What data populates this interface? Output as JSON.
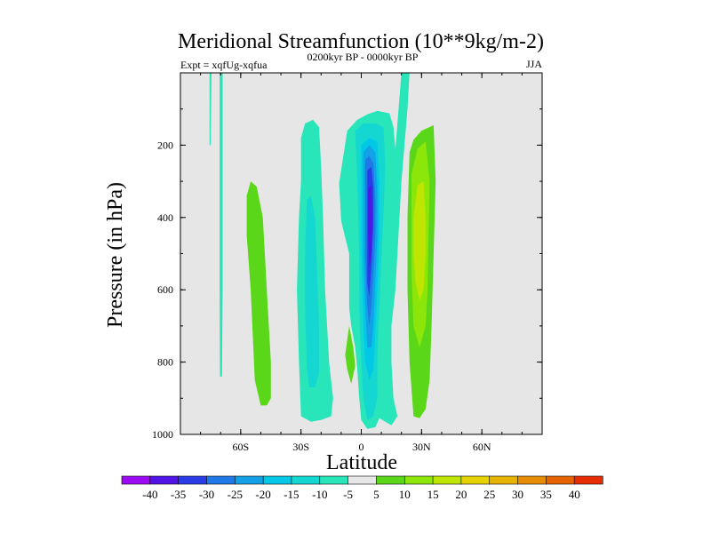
{
  "chart_data": {
    "type": "heatmap",
    "title": "Meridional Streamfunction (10**9kg/m-2)",
    "experiment_label": "Expt = xqfUg-xqfua",
    "period_label": "0200kyr BP - 0000kyr BP",
    "season_label": "JJA",
    "xlabel": "Latitude",
    "ylabel": "Pressure (in hPa)",
    "xlim": [
      -90,
      90
    ],
    "ylim": [
      1000,
      0
    ],
    "x_ticks": [
      {
        "value": -60,
        "label": "60S"
      },
      {
        "value": -30,
        "label": "30S"
      },
      {
        "value": 0,
        "label": "0"
      },
      {
        "value": 30,
        "label": "30N"
      },
      {
        "value": 60,
        "label": "60N"
      }
    ],
    "y_ticks": [
      {
        "value": 200,
        "label": "200"
      },
      {
        "value": 400,
        "label": "400"
      },
      {
        "value": 600,
        "label": "600"
      },
      {
        "value": 800,
        "label": "800"
      },
      {
        "value": 1000,
        "label": "1000"
      }
    ],
    "background_color": "#e6e6e6",
    "colorbar": {
      "levels": [
        "-40",
        "-35",
        "-30",
        "-25",
        "-20",
        "-15",
        "-10",
        "-5",
        "5",
        "10",
        "15",
        "20",
        "25",
        "30",
        "35",
        "40"
      ],
      "colors": [
        "#9b0af0",
        "#5014e6",
        "#2a3ce6",
        "#1e78e6",
        "#14a0e6",
        "#00c8e6",
        "#14d7d2",
        "#28e6b9",
        "#e6e6e6",
        "#5ad718",
        "#8ce60a",
        "#bee600",
        "#e6d200",
        "#e6b400",
        "#e68c00",
        "#e66400",
        "#e62d00"
      ]
    },
    "contour_regions": [
      {
        "level": -5,
        "points": [
          [
            -75.5,
            0
          ],
          [
            -74.5,
            0
          ],
          [
            -75,
            200
          ],
          [
            -75.5,
            200
          ]
        ]
      },
      {
        "level": -5,
        "points": [
          [
            -70.5,
            0
          ],
          [
            -69,
            0
          ],
          [
            -69,
            600
          ],
          [
            -69.3,
            840
          ],
          [
            -70.3,
            840
          ],
          [
            -70.5,
            600
          ]
        ]
      },
      {
        "level": 5,
        "points": [
          [
            -57,
            340
          ],
          [
            -55,
            300
          ],
          [
            -52,
            315
          ],
          [
            -49,
            400
          ],
          [
            -47,
            600
          ],
          [
            -45,
            800
          ],
          [
            -45,
            900
          ],
          [
            -47,
            920
          ],
          [
            -50,
            920
          ],
          [
            -53,
            850
          ],
          [
            -55,
            600
          ],
          [
            -57,
            450
          ]
        ]
      },
      {
        "level": -5,
        "points": [
          [
            -30,
            180
          ],
          [
            -28,
            140
          ],
          [
            -24,
            130
          ],
          [
            -21,
            150
          ],
          [
            -20,
            260
          ],
          [
            -19,
            400
          ],
          [
            -18,
            600
          ],
          [
            -16,
            800
          ],
          [
            -14,
            900
          ],
          [
            -15,
            950
          ],
          [
            -20,
            960
          ],
          [
            -25,
            965
          ],
          [
            -30,
            950
          ],
          [
            -31,
            800
          ],
          [
            -32,
            600
          ],
          [
            -31,
            400
          ],
          [
            -30,
            300
          ]
        ]
      },
      {
        "level": -10,
        "points": [
          [
            -27,
            350
          ],
          [
            -25,
            340
          ],
          [
            -23,
            400
          ],
          [
            -22,
            550
          ],
          [
            -21,
            700
          ],
          [
            -21,
            830
          ],
          [
            -23,
            870
          ],
          [
            -26,
            870
          ],
          [
            -27,
            820
          ],
          [
            -28,
            650
          ],
          [
            -28,
            500
          ]
        ]
      },
      {
        "level": 5,
        "points": [
          [
            -6,
            700
          ],
          [
            -4,
            760
          ],
          [
            -3,
            810
          ],
          [
            -5,
            860
          ],
          [
            -7,
            820
          ],
          [
            -8,
            780
          ]
        ]
      },
      {
        "level": -5,
        "points": [
          [
            -11,
            305
          ],
          [
            -7,
            160
          ],
          [
            -2,
            130
          ],
          [
            3,
            115
          ],
          [
            8,
            105
          ],
          [
            14,
            112
          ],
          [
            16,
            150
          ],
          [
            17,
            210
          ],
          [
            20,
            0
          ],
          [
            24,
            0
          ],
          [
            23,
            100
          ],
          [
            20,
            300
          ],
          [
            18,
            500
          ],
          [
            17,
            600
          ],
          [
            15,
            700
          ],
          [
            15,
            800
          ],
          [
            16,
            900
          ],
          [
            18,
            950
          ],
          [
            15,
            975
          ],
          [
            12,
            965
          ],
          [
            9,
            955
          ],
          [
            7,
            980
          ],
          [
            3,
            985
          ],
          [
            0,
            960
          ],
          [
            -1,
            900
          ],
          [
            -2,
            820
          ],
          [
            -3,
            760
          ],
          [
            -5,
            700
          ],
          [
            -6,
            650
          ],
          [
            -6,
            500
          ],
          [
            -10,
            410
          ]
        ]
      },
      {
        "level": -10,
        "points": [
          [
            -3,
            160
          ],
          [
            1,
            140
          ],
          [
            7,
            140
          ],
          [
            11,
            150
          ],
          [
            12,
            250
          ],
          [
            11,
            400
          ],
          [
            10,
            520
          ],
          [
            9,
            650
          ],
          [
            8,
            780
          ],
          [
            8,
            900
          ],
          [
            6,
            950
          ],
          [
            3,
            960
          ],
          [
            1,
            900
          ],
          [
            0,
            800
          ],
          [
            -1,
            650
          ],
          [
            -1,
            500
          ],
          [
            -2,
            300
          ]
        ]
      },
      {
        "level": -15,
        "points": [
          [
            0,
            200
          ],
          [
            4,
            180
          ],
          [
            8,
            190
          ],
          [
            9,
            300
          ],
          [
            9,
            450
          ],
          [
            8,
            600
          ],
          [
            7,
            720
          ],
          [
            6,
            820
          ],
          [
            4,
            850
          ],
          [
            2,
            800
          ],
          [
            1,
            700
          ],
          [
            0,
            500
          ],
          [
            0,
            350
          ]
        ]
      },
      {
        "level": -20,
        "points": [
          [
            1,
            220
          ],
          [
            4,
            200
          ],
          [
            7,
            220
          ],
          [
            8,
            320
          ],
          [
            8,
            450
          ],
          [
            7,
            580
          ],
          [
            6,
            700
          ],
          [
            5,
            760
          ],
          [
            3,
            760
          ],
          [
            2,
            650
          ],
          [
            1,
            500
          ],
          [
            1,
            350
          ]
        ]
      },
      {
        "level": -25,
        "points": [
          [
            2,
            240
          ],
          [
            4,
            230
          ],
          [
            6,
            250
          ],
          [
            7,
            350
          ],
          [
            7,
            450
          ],
          [
            6,
            550
          ],
          [
            5,
            650
          ],
          [
            4,
            700
          ],
          [
            3,
            650
          ],
          [
            2,
            500
          ]
        ]
      },
      {
        "level": -30,
        "points": [
          [
            3,
            270
          ],
          [
            5,
            260
          ],
          [
            6,
            320
          ],
          [
            6,
            420
          ],
          [
            5,
            540
          ],
          [
            4,
            620
          ],
          [
            3,
            580
          ],
          [
            3,
            400
          ]
        ]
      },
      {
        "level": -35,
        "points": [
          [
            3.5,
            320
          ],
          [
            5,
            310
          ],
          [
            5.5,
            400
          ],
          [
            5,
            500
          ],
          [
            4,
            540
          ],
          [
            3.5,
            450
          ]
        ]
      },
      {
        "level": 5,
        "points": [
          [
            24,
            220
          ],
          [
            26,
            185
          ],
          [
            30,
            160
          ],
          [
            36,
            145
          ],
          [
            37,
            300
          ],
          [
            36,
            500
          ],
          [
            35,
            700
          ],
          [
            34,
            850
          ],
          [
            32,
            930
          ],
          [
            29,
            955
          ],
          [
            26,
            950
          ],
          [
            24,
            800
          ],
          [
            23,
            600
          ],
          [
            23,
            400
          ]
        ]
      },
      {
        "level": 10,
        "points": [
          [
            25,
            280
          ],
          [
            28,
            210
          ],
          [
            32,
            190
          ],
          [
            34,
            300
          ],
          [
            33.5,
            450
          ],
          [
            33,
            600
          ],
          [
            32,
            700
          ],
          [
            29,
            760
          ],
          [
            26,
            700
          ],
          [
            25,
            550
          ],
          [
            25,
            400
          ]
        ]
      },
      {
        "level": 15,
        "points": [
          [
            26,
            400
          ],
          [
            28,
            310
          ],
          [
            31,
            300
          ],
          [
            32,
            400
          ],
          [
            32,
            500
          ],
          [
            31,
            600
          ],
          [
            29,
            630
          ],
          [
            27,
            580
          ],
          [
            26,
            500
          ]
        ]
      }
    ]
  }
}
